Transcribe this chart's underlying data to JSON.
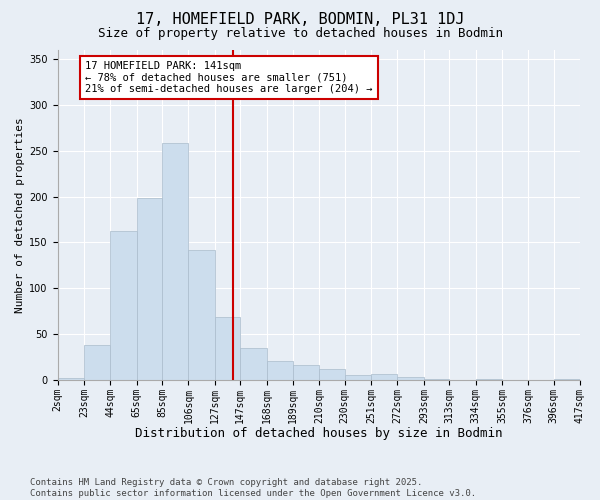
{
  "title": "17, HOMEFIELD PARK, BODMIN, PL31 1DJ",
  "subtitle": "Size of property relative to detached houses in Bodmin",
  "xlabel": "Distribution of detached houses by size in Bodmin",
  "ylabel": "Number of detached properties",
  "bar_color": "#ccdded",
  "bar_edge_color": "#aabccc",
  "background_color": "#e8eef5",
  "plot_bg_color": "#e8eef5",
  "grid_color": "#ffffff",
  "vline_x": 141,
  "vline_color": "#cc0000",
  "annotation_text": "17 HOMEFIELD PARK: 141sqm\n← 78% of detached houses are smaller (751)\n21% of semi-detached houses are larger (204) →",
  "annotation_box_color": "#ffffff",
  "annotation_box_edge": "#cc0000",
  "bins": [
    2,
    23,
    44,
    65,
    85,
    106,
    127,
    147,
    168,
    189,
    210,
    230,
    251,
    272,
    293,
    313,
    334,
    355,
    376,
    396,
    417
  ],
  "bin_labels": [
    "2sqm",
    "23sqm",
    "44sqm",
    "65sqm",
    "85sqm",
    "106sqm",
    "127sqm",
    "147sqm",
    "168sqm",
    "189sqm",
    "210sqm",
    "230sqm",
    "251sqm",
    "272sqm",
    "293sqm",
    "313sqm",
    "334sqm",
    "355sqm",
    "376sqm",
    "396sqm",
    "417sqm"
  ],
  "bar_heights": [
    2,
    38,
    163,
    199,
    258,
    142,
    69,
    35,
    21,
    16,
    12,
    5,
    6,
    3,
    1,
    0,
    1,
    0,
    0,
    1
  ],
  "ylim": [
    0,
    360
  ],
  "yticks": [
    0,
    50,
    100,
    150,
    200,
    250,
    300,
    350
  ],
  "footer_text": "Contains HM Land Registry data © Crown copyright and database right 2025.\nContains public sector information licensed under the Open Government Licence v3.0.",
  "title_fontsize": 11,
  "subtitle_fontsize": 9,
  "xlabel_fontsize": 9,
  "ylabel_fontsize": 8,
  "tick_fontsize": 7,
  "footer_fontsize": 6.5,
  "annot_fontsize": 7.5
}
